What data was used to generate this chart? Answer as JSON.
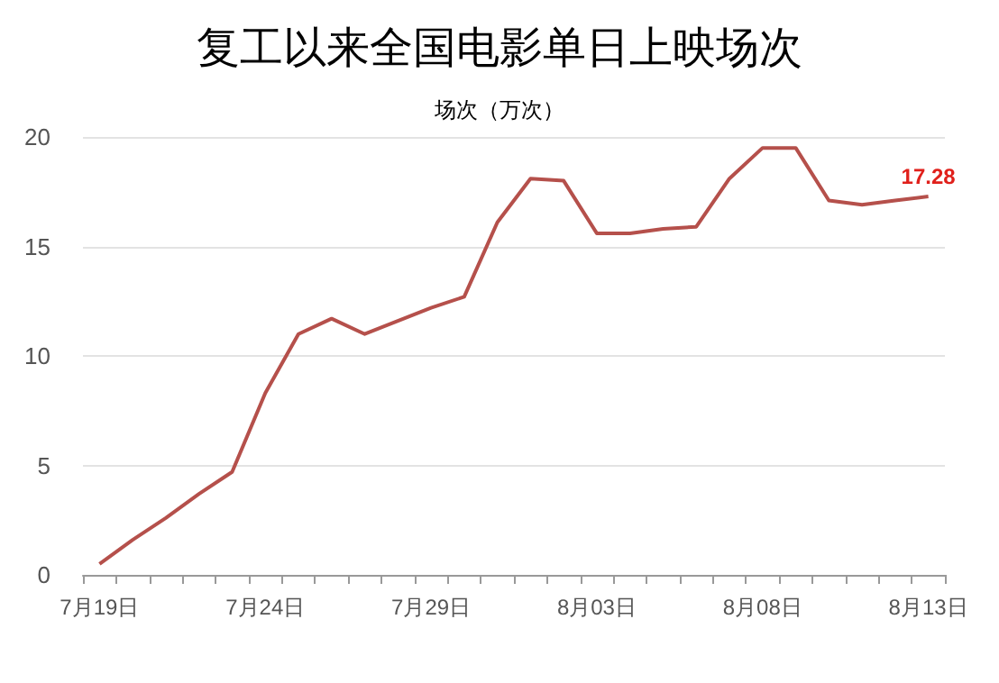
{
  "chart_data": {
    "type": "line",
    "title": "复工以来全国电影单日上映场次",
    "ylabel": "场次（万次）",
    "categories": [
      "7月19日",
      null,
      null,
      null,
      null,
      "7月24日",
      null,
      null,
      null,
      null,
      "7月29日",
      null,
      null,
      null,
      null,
      "8月03日",
      null,
      null,
      null,
      null,
      "8月08日",
      null,
      null,
      null,
      null,
      "8月13日"
    ],
    "series": [
      {
        "color": "#b5504b",
        "values": [
          0.5,
          1.6,
          2.6,
          3.7,
          4.7,
          8.3,
          11.0,
          11.7,
          11.0,
          11.6,
          12.2,
          12.7,
          16.1,
          18.1,
          18.0,
          15.6,
          15.6,
          15.8,
          15.9,
          18.1,
          19.5,
          19.5,
          17.1,
          16.9,
          17.1,
          17.28
        ],
        "value_labels": [
          null,
          null,
          null,
          null,
          null,
          null,
          null,
          null,
          null,
          null,
          null,
          null,
          null,
          null,
          null,
          null,
          null,
          null,
          null,
          null,
          null,
          null,
          null,
          null,
          null,
          "17.28"
        ]
      }
    ],
    "ylim": [
      0,
      20
    ],
    "yticks": [
      0,
      5,
      10,
      15,
      20
    ],
    "grid": "y",
    "marker": "none",
    "line_style": "solid"
  }
}
